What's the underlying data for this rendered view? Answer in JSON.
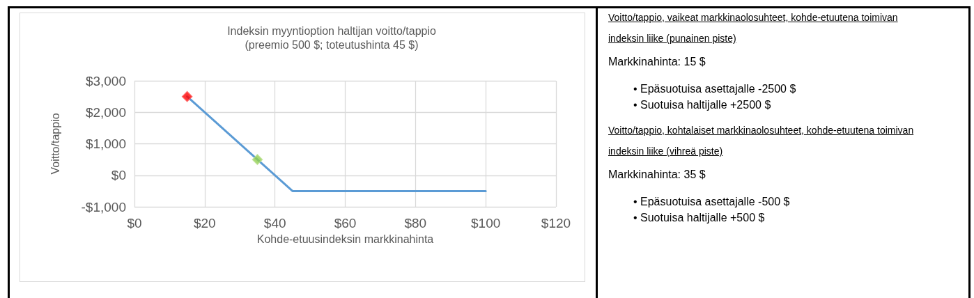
{
  "chart_data": {
    "type": "line",
    "title": "Indeksin myyntioption haltijan voitto/tappio",
    "subtitle": "(preemio 500 $; toteutushinta 45 $)",
    "xlabel": "Kohde-etuusindeksin markkinahinta",
    "ylabel": "Voitto/tappio",
    "series": [
      {
        "color": "#5b9bd5",
        "x": [
          15,
          45,
          100
        ],
        "values": [
          2500,
          -500,
          -500
        ],
        "marker": "none"
      },
      {
        "type": "scatter",
        "color": "#ff0000",
        "x": [
          15
        ],
        "values": [
          2500
        ],
        "marker": "diamond"
      },
      {
        "type": "scatter",
        "color": "#92d050",
        "x": [
          35
        ],
        "values": [
          500
        ],
        "marker": "diamond"
      }
    ],
    "xlim": [
      0,
      120
    ],
    "xticks": [
      {
        "value": 0,
        "label": "$0"
      },
      {
        "value": 20,
        "label": "$20"
      },
      {
        "value": 40,
        "label": "$40"
      },
      {
        "value": 60,
        "label": "$60"
      },
      {
        "value": 80,
        "label": "$80"
      },
      {
        "value": 100,
        "label": "$100"
      },
      {
        "value": 120,
        "label": "$120"
      }
    ],
    "ylim": [
      -1000,
      3000
    ],
    "yticks": [
      {
        "value": -1000,
        "label": "-$1,000"
      },
      {
        "value": 0,
        "label": "$0"
      },
      {
        "value": 1000,
        "label": "$1,000"
      },
      {
        "value": 2000,
        "label": "$2,000"
      },
      {
        "value": 3000,
        "label": "$3,000"
      }
    ],
    "grid": true,
    "annotations": [
      "Voitto/tappio, vaikeat markkinaolosuhteet, kohde-etuutena toimivan indeksin liike (punainen piste)",
      "Markkinahinta: 15 $",
      "• Epäsuotuisa asettajalle -2500 $",
      "• Suotuisa haltijalle +2500 $",
      "Voitto/tappio, kohtalaiset markkinaolosuhteet, kohde-etuutena toimivan indeksin liike (vihreä piste)",
      "Markkinahinta: 35 $",
      "• Epäsuotuisa asettajalle -500 $",
      "• Suotuisa haltijalle +500 $"
    ]
  }
}
